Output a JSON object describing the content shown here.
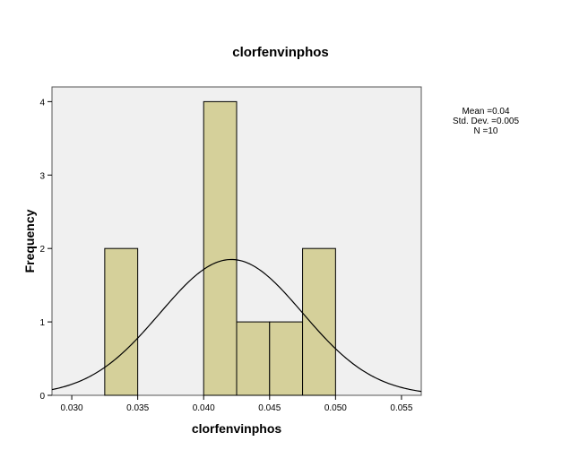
{
  "chart_data": {
    "type": "histogram",
    "title": "clorfenvinphos",
    "xlabel": "clorfenvinphos",
    "ylabel": "Frequency",
    "xlim": [
      0.0285,
      0.0565
    ],
    "ylim": [
      0,
      4.2
    ],
    "x_ticks": [
      0.03,
      0.035,
      0.04,
      0.045,
      0.05,
      0.055
    ],
    "x_tick_labels": [
      "0.030",
      "0.035",
      "0.040",
      "0.045",
      "0.050",
      "0.055"
    ],
    "y_ticks": [
      0,
      1,
      2,
      3,
      4
    ],
    "y_tick_labels": [
      "0",
      "1",
      "2",
      "3",
      "4"
    ],
    "bins": [
      {
        "start": 0.0325,
        "end": 0.035,
        "count": 2
      },
      {
        "start": 0.04,
        "end": 0.0425,
        "count": 4
      },
      {
        "start": 0.0425,
        "end": 0.045,
        "count": 1
      },
      {
        "start": 0.045,
        "end": 0.0475,
        "count": 1
      },
      {
        "start": 0.0475,
        "end": 0.05,
        "count": 2
      }
    ],
    "normal_curve": {
      "peak": 1.85,
      "mean": 0.0421,
      "sd": 0.0054
    },
    "stats_lines": [
      "Mean =0.04",
      "Std. Dev. =0.005",
      "N =10"
    ],
    "colors": {
      "bar_fill": "#d5d09a",
      "bar_stroke": "#000000",
      "plot_bg": "#f0f0f0",
      "curve": "#000000"
    }
  }
}
